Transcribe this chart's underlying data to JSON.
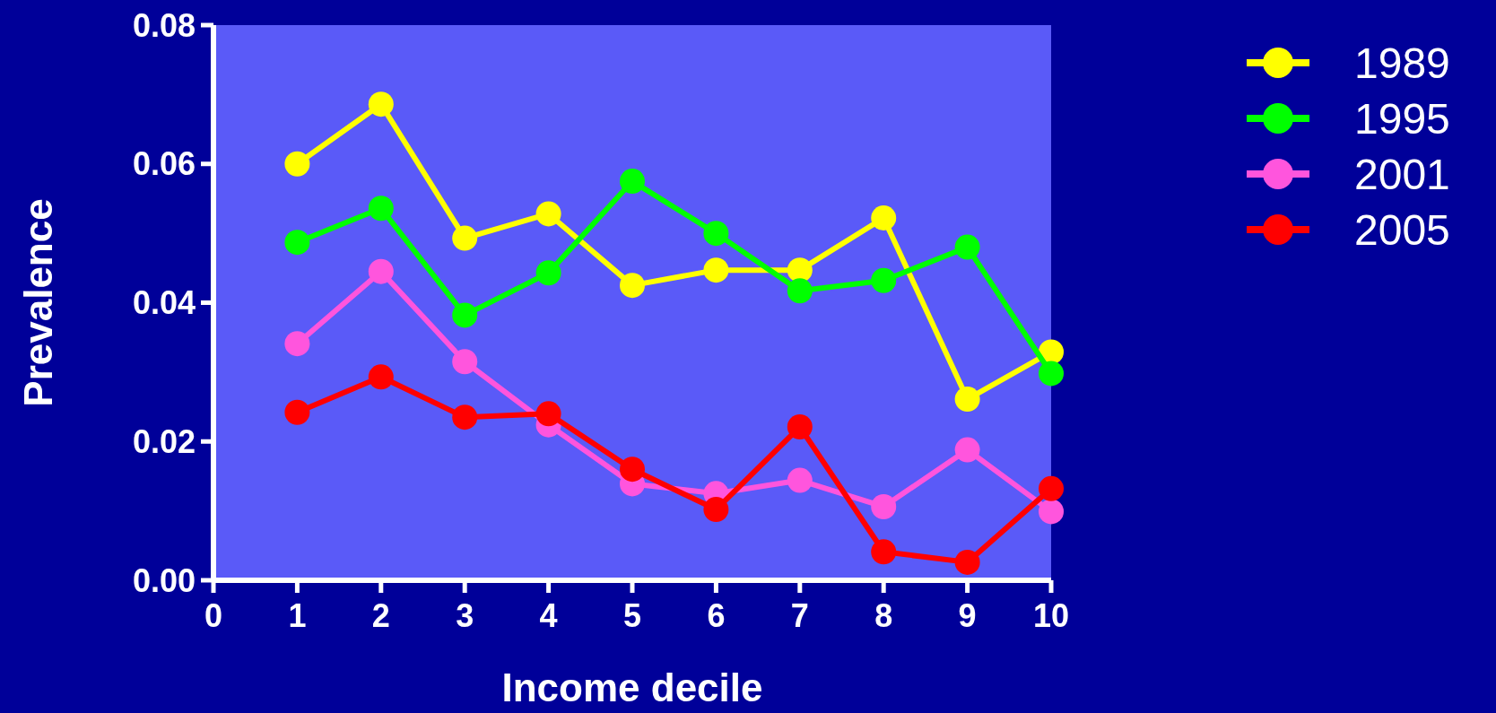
{
  "chart_data": {
    "type": "line",
    "xlabel": "Income decile",
    "ylabel": "Prevalence",
    "x": [
      1,
      2,
      3,
      4,
      5,
      6,
      7,
      8,
      9,
      10
    ],
    "xlim": [
      0,
      10
    ],
    "xticks": [
      0,
      1,
      2,
      3,
      4,
      5,
      6,
      7,
      8,
      9,
      10
    ],
    "ylim": [
      0,
      0.08
    ],
    "yticks": [
      {
        "value": 0,
        "label": "0.00"
      },
      {
        "value": 0.02,
        "label": "0.02"
      },
      {
        "value": 0.04,
        "label": "0.04"
      },
      {
        "value": 0.06,
        "label": "0.06"
      },
      {
        "value": 0.08,
        "label": "0.08"
      }
    ],
    "legend": "top right",
    "marker": "circle",
    "line_style": "solid",
    "grid": false,
    "series": [
      {
        "name": "1989",
        "color": "#ffff00",
        "values": [
          0.06,
          0.0686,
          0.0493,
          0.0528,
          0.0425,
          0.0447,
          0.0447,
          0.0522,
          0.0261,
          0.0329
        ]
      },
      {
        "name": "1995",
        "color": "#00ff00",
        "values": [
          0.0487,
          0.0536,
          0.0382,
          0.0443,
          0.0575,
          0.05,
          0.0417,
          0.0432,
          0.048,
          0.0298
        ]
      },
      {
        "name": "2001",
        "color": "#ff55dd",
        "values": [
          0.0341,
          0.0445,
          0.0315,
          0.0224,
          0.0139,
          0.0125,
          0.0144,
          0.0106,
          0.0188,
          0.0099
        ]
      },
      {
        "name": "2005",
        "color": "#ff0000",
        "values": [
          0.0242,
          0.0293,
          0.0235,
          0.024,
          0.016,
          0.0102,
          0.0221,
          0.0041,
          0.0026,
          0.0132
        ]
      }
    ]
  }
}
